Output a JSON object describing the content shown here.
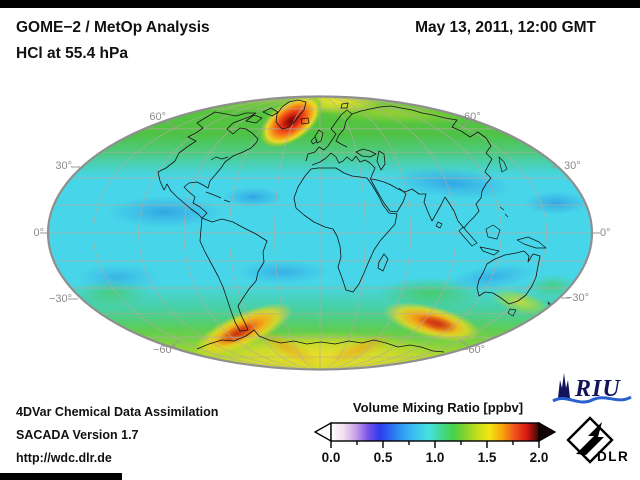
{
  "header": {
    "title": "GOME−2 / MetOp Analysis",
    "subtitle": "HCl at 55.4 hPa",
    "datetime": "May 13, 2011, 12:00 GMT"
  },
  "map": {
    "projection": "Mollweide",
    "lat_labels_left": [
      "60°",
      "30°",
      "0°",
      "−30°",
      "−60°"
    ],
    "lat_labels_right": [
      "60°",
      "30°",
      "0°",
      "−30°",
      "−60°"
    ]
  },
  "colorbar": {
    "title": "Volume Mixing Ratio [ppbv]",
    "ticks": [
      "0.0",
      "0.5",
      "1.0",
      "1.5",
      "2.0"
    ],
    "gradient": [
      "#FFFFFF",
      "#F3E0F2",
      "#C9A2EC",
      "#7B55E8",
      "#2F3BEE",
      "#2B73F2",
      "#33A3F2",
      "#3DC6EF",
      "#47E0DE",
      "#43D993",
      "#46D147",
      "#86D42D",
      "#C8DF1C",
      "#F2E512",
      "#F7A30D",
      "#F0541A",
      "#D81911",
      "#3A0805"
    ],
    "below_range_color": "#FFFFFF",
    "above_range_color": "#140101"
  },
  "footer": {
    "line1": "4DVar Chemical Data Assimilation",
    "line2": "SACADA Version 1.7",
    "line3": "http://wdc.dlr.de"
  },
  "logos": {
    "riu_text": "RIU",
    "dlr_text": "DLR"
  },
  "chart_data": {
    "type": "heatmap",
    "title": "GOME−2 / MetOp Analysis",
    "subtitle": "HCl at 55.4 hPa",
    "timestamp": "May 13, 2011, 12:00 GMT",
    "projection": "mollweide",
    "colorbar_label": "Volume Mixing Ratio [ppbv]",
    "unit": "ppbv",
    "range": [
      0.0,
      2.0
    ],
    "tick_values": [
      0.0,
      0.5,
      1.0,
      1.5,
      2.0
    ],
    "colorbar_extended_below": true,
    "colorbar_extended_above": true,
    "graticule": {
      "parallel_step_deg": 15,
      "meridian_step_deg": 30,
      "labeled_latitudes": [
        60,
        30,
        0,
        -30,
        -60
      ]
    },
    "field_features": [
      {
        "region": "tropics and subtropics, all longitudes",
        "approx_value_ppbv": 0.75
      },
      {
        "region": "subtropical minima patches (N Pacific, Central Asia, S Atlantic, S Indian Ocean)",
        "approx_value_ppbv": 0.55
      },
      {
        "region": "northern high latitudes 50–80°N",
        "approx_value_ppbv": 1.2
      },
      {
        "region": "maximum over west Greenland / Baffin Bay",
        "approx_value_ppbv": 1.9
      },
      {
        "region": "yellow streak near North Pole",
        "approx_value_ppbv": 1.45
      },
      {
        "region": "southern high-latitude belt 50–70°S",
        "approx_value_ppbv": 1.25
      },
      {
        "region": "maximum south of South America (~60°S)",
        "approx_value_ppbv": 1.7
      },
      {
        "region": "maximum south Indian Ocean sector (~60°S)",
        "approx_value_ppbv": 1.7
      },
      {
        "region": "Antarctica interior",
        "approx_value_ppbv": 1.4
      }
    ]
  }
}
